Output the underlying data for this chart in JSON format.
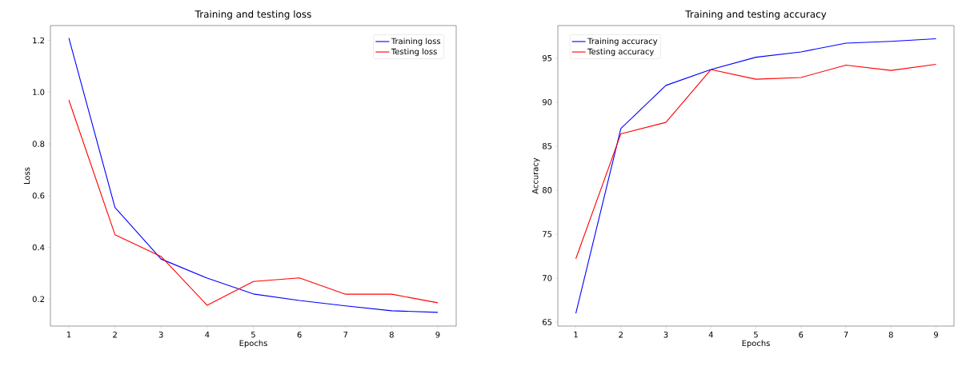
{
  "chart_data": [
    {
      "type": "line",
      "title": "Training and testing loss",
      "xlabel": "Epochs",
      "ylabel": "Loss",
      "x": [
        1,
        2,
        3,
        4,
        5,
        6,
        7,
        8,
        9
      ],
      "xlim": [
        0.6,
        9.4
      ],
      "xticks": [
        1,
        2,
        3,
        4,
        5,
        6,
        7,
        8,
        9
      ],
      "ylim": [
        0.096,
        1.257
      ],
      "yticks": [
        0.2,
        0.4,
        0.6,
        0.8,
        {
          "value": 1,
          "label": "1.0"
        },
        1.2
      ],
      "legend": "top right",
      "grid": false,
      "marker": "none",
      "line_style": "solid",
      "series": [
        {
          "name": "Training loss",
          "color": "#0000ff",
          "values": [
            1.209,
            0.554,
            0.355,
            0.281,
            0.22,
            0.195,
            0.174,
            0.155,
            0.149
          ]
        },
        {
          "name": "Testing loss",
          "color": "#ff0000",
          "values": [
            0.969,
            0.449,
            0.365,
            0.176,
            0.268,
            0.282,
            0.219,
            0.219,
            0.186
          ]
        }
      ]
    },
    {
      "type": "line",
      "title": "Training and testing accuracy",
      "xlabel": "Epochs",
      "ylabel": "Accuracy",
      "x": [
        1,
        2,
        3,
        4,
        5,
        6,
        7,
        8,
        9
      ],
      "xlim": [
        0.6,
        9.4
      ],
      "xticks": [
        1,
        2,
        3,
        4,
        5,
        6,
        7,
        8,
        9
      ],
      "ylim": [
        64.55,
        98.7
      ],
      "yticks": [
        65,
        70,
        75,
        80,
        85,
        90,
        95
      ],
      "legend": "top left",
      "grid": false,
      "marker": "none",
      "line_style": "solid",
      "series": [
        {
          "name": "Training accuracy",
          "color": "#0000ff",
          "values": [
            66.0,
            87.0,
            91.9,
            93.7,
            95.1,
            95.7,
            96.7,
            96.9,
            97.2
          ]
        },
        {
          "name": "Testing accuracy",
          "color": "#ff0000",
          "values": [
            72.2,
            86.4,
            87.7,
            93.7,
            92.6,
            92.8,
            94.2,
            93.6,
            94.3
          ]
        }
      ]
    }
  ]
}
